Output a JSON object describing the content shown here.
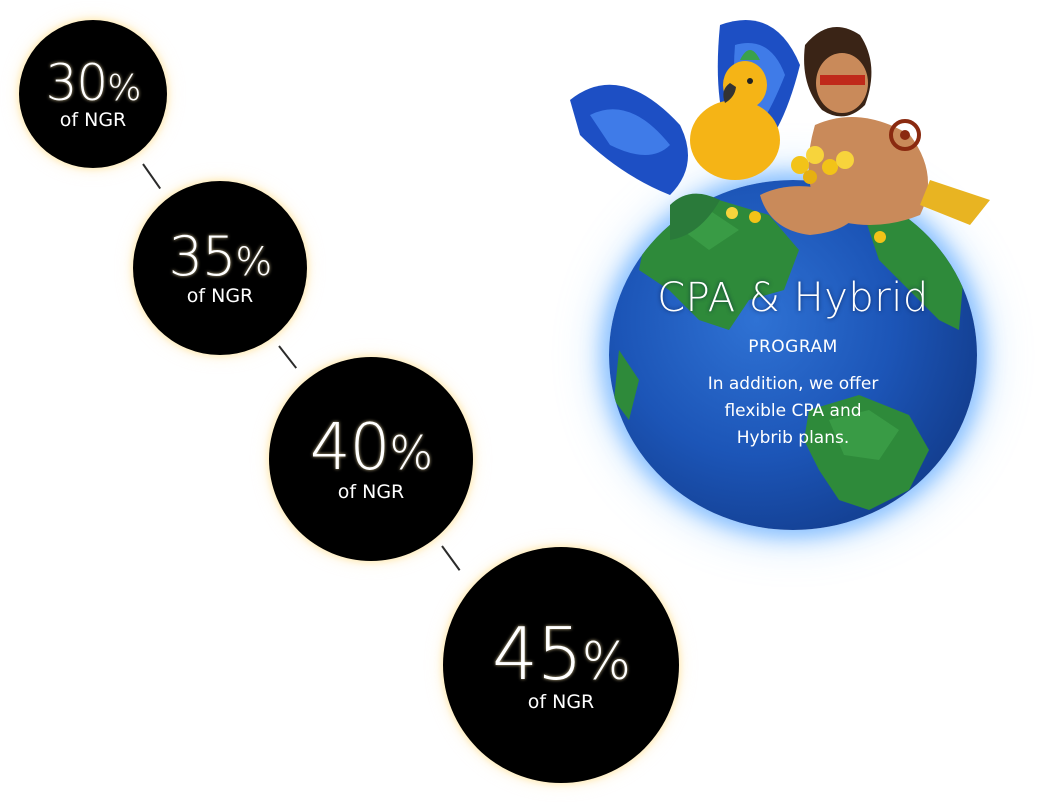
{
  "tiers": [
    {
      "value": "30",
      "sign": "%",
      "label": "of NGR"
    },
    {
      "value": "35",
      "sign": "%",
      "label": "of NGR"
    },
    {
      "value": "40",
      "sign": "%",
      "label": "of NGR"
    },
    {
      "value": "45",
      "sign": "%",
      "label": "of NGR"
    }
  ],
  "program": {
    "title": "CPA & Hybrid",
    "subtitle": "PROGRAM",
    "description": "In addition, we offer flexible CPA and Hybrib plans."
  },
  "colors": {
    "circle_bg": "#000000",
    "circle_glow": "#ffe196",
    "ocean": "#1c55b7",
    "land": "#2e8a3a",
    "text": "#ffffff"
  },
  "illustration": {
    "items": [
      "parrot-illustration",
      "tribal-man-illustration",
      "gold-coins",
      "globe"
    ]
  }
}
